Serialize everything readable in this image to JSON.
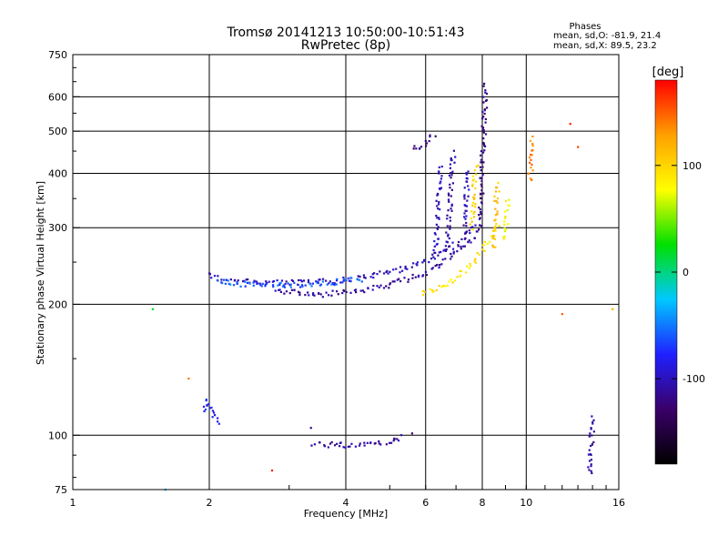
{
  "chart_data": {
    "type": "scatter",
    "title": "Tromsø 20141213 10:50:00-10:51:43",
    "subtitle": "RwPretec (8p)",
    "xlabel": "Frequency [MHz]",
    "ylabel": "Stationary phase Virtual Height [km]",
    "xscale": "log2",
    "yscale": "log",
    "xlim": [
      1,
      16
    ],
    "ylim": [
      75,
      750
    ],
    "x_ticks": [
      1,
      2,
      4,
      6,
      8,
      10,
      16
    ],
    "y_ticks": [
      75,
      100,
      200,
      300,
      400,
      500,
      600,
      750
    ],
    "grid": true,
    "phases_box": {
      "title": "Phases",
      "line1": "mean, sd,O: -81.9, 21.4",
      "line2": "mean, sd,X:  89.5, 23.2"
    },
    "colorbar": {
      "label": "[deg]",
      "range": [
        -180,
        180
      ],
      "ticks": [
        100,
        0,
        -100
      ],
      "colors": [
        "#000000",
        "#3a0068",
        "#2020ff",
        "#00c8ff",
        "#00e000",
        "#ffff00",
        "#ffa000",
        "#ff0000"
      ]
    },
    "traces": [
      {
        "name": "",
        "phase": -100,
        "points": [
          [
            2.0,
            236
          ],
          [
            2.1,
            228
          ],
          [
            2.3,
            226
          ],
          [
            2.6,
            225
          ],
          [
            3.0,
            224
          ],
          [
            3.5,
            225
          ],
          [
            4.0,
            228
          ],
          [
            4.5,
            232
          ],
          [
            5.0,
            237
          ],
          [
            5.5,
            244
          ],
          [
            6.0,
            252
          ],
          [
            6.5,
            262
          ],
          [
            7.0,
            275
          ],
          [
            7.5,
            292
          ],
          [
            7.8,
            305
          ]
        ]
      },
      {
        "name": "",
        "phase": -110,
        "points": [
          [
            2.8,
            215
          ],
          [
            3.2,
            212
          ],
          [
            3.6,
            211
          ],
          [
            4.0,
            213
          ],
          [
            4.5,
            217
          ],
          [
            5.0,
            222
          ],
          [
            5.5,
            229
          ],
          [
            6.0,
            237
          ],
          [
            6.5,
            248
          ],
          [
            7.0,
            262
          ],
          [
            7.5,
            280
          ],
          [
            7.9,
            298
          ]
        ]
      },
      {
        "name": "",
        "phase": -60,
        "points": [
          [
            2.1,
            226
          ],
          [
            2.4,
            222
          ],
          [
            2.8,
            221
          ],
          [
            3.2,
            222
          ],
          [
            3.6,
            224
          ],
          [
            4.0,
            226
          ],
          [
            4.4,
            229
          ]
        ]
      },
      {
        "name": "",
        "phase": -120,
        "points": [
          [
            5.6,
            450
          ],
          [
            5.9,
            465
          ],
          [
            6.1,
            480
          ],
          [
            6.3,
            495
          ]
        ]
      },
      {
        "name": "",
        "phase": -100,
        "points": [
          [
            6.3,
            260
          ],
          [
            6.35,
            300
          ],
          [
            6.4,
            340
          ],
          [
            6.45,
            380
          ],
          [
            6.5,
            420
          ]
        ]
      },
      {
        "name": "",
        "phase": -110,
        "points": [
          [
            6.7,
            270
          ],
          [
            6.75,
            310
          ],
          [
            6.8,
            350
          ],
          [
            6.85,
            400
          ],
          [
            6.9,
            450
          ]
        ]
      },
      {
        "name": "",
        "phase": -100,
        "points": [
          [
            7.3,
            290
          ],
          [
            7.35,
            330
          ],
          [
            7.4,
            370
          ],
          [
            7.45,
            410
          ]
        ]
      },
      {
        "name": "",
        "phase": -120,
        "points": [
          [
            7.9,
            300
          ],
          [
            7.95,
            360
          ],
          [
            8.0,
            420
          ],
          [
            8.05,
            480
          ],
          [
            8.1,
            560
          ],
          [
            8.12,
            650
          ]
        ]
      },
      {
        "name": "",
        "phase": 90,
        "points": [
          [
            5.9,
            212
          ],
          [
            6.3,
            216
          ],
          [
            6.7,
            222
          ],
          [
            7.1,
            232
          ],
          [
            7.5,
            245
          ],
          [
            7.9,
            262
          ],
          [
            8.3,
            282
          ],
          [
            8.7,
            305
          ]
        ]
      },
      {
        "name": "",
        "phase": 100,
        "points": [
          [
            7.6,
            300
          ],
          [
            7.65,
            340
          ],
          [
            7.7,
            380
          ],
          [
            7.75,
            420
          ]
        ]
      },
      {
        "name": "",
        "phase": 110,
        "points": [
          [
            8.5,
            270
          ],
          [
            8.55,
            310
          ],
          [
            8.6,
            350
          ],
          [
            8.65,
            380
          ]
        ]
      },
      {
        "name": "",
        "phase": 80,
        "points": [
          [
            9.0,
            280
          ],
          [
            9.05,
            320
          ],
          [
            9.1,
            350
          ]
        ]
      },
      {
        "name": "",
        "phase": -110,
        "points": [
          [
            3.4,
            95
          ],
          [
            3.8,
            95
          ],
          [
            4.2,
            95
          ],
          [
            4.6,
            96
          ],
          [
            5.0,
            97
          ],
          [
            5.4,
            99
          ]
        ]
      },
      {
        "name": "",
        "phase": -80,
        "points": [
          [
            1.95,
            120
          ],
          [
            1.97,
            115
          ],
          [
            2.0,
            118
          ],
          [
            2.05,
            110
          ],
          [
            2.1,
            106
          ]
        ]
      },
      {
        "name": "",
        "phase": 20,
        "points": [
          [
            1.5,
            195
          ]
        ]
      },
      {
        "name": "",
        "phase": 140,
        "points": [
          [
            1.8,
            135
          ]
        ]
      },
      {
        "name": "",
        "phase": 170,
        "points": [
          [
            2.75,
            83
          ]
        ]
      },
      {
        "name": "",
        "phase": -120,
        "points": [
          [
            3.35,
            104
          ]
        ]
      },
      {
        "name": "",
        "phase": -130,
        "points": [
          [
            5.6,
            101
          ]
        ]
      },
      {
        "name": "",
        "phase": 140,
        "points": [
          [
            10.3,
            480
          ],
          [
            10.2,
            385
          ]
        ]
      },
      {
        "name": "",
        "phase": 170,
        "points": [
          [
            12.5,
            520
          ]
        ]
      },
      {
        "name": "",
        "phase": 160,
        "points": [
          [
            13.0,
            460
          ]
        ]
      },
      {
        "name": "",
        "phase": 150,
        "points": [
          [
            12.0,
            190
          ]
        ]
      },
      {
        "name": "",
        "phase": 120,
        "points": [
          [
            15.5,
            195
          ]
        ]
      },
      {
        "name": "",
        "phase": -110,
        "points": [
          [
            14.0,
            110
          ],
          [
            13.8,
            80
          ]
        ]
      },
      {
        "name": "",
        "phase": -30,
        "points": [
          [
            1.6,
            75
          ]
        ]
      }
    ]
  }
}
